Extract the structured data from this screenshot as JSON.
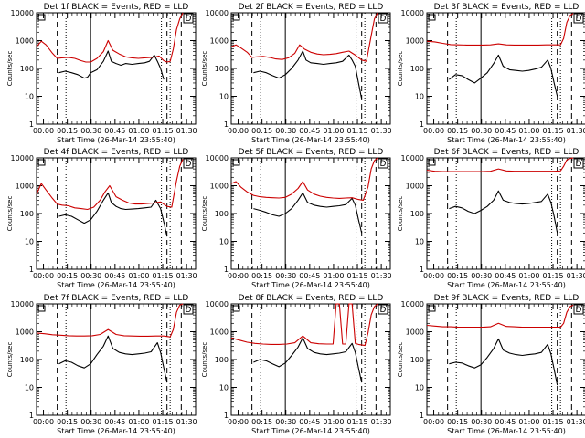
{
  "chart_data": {
    "type": "line",
    "ylabel": "Counts/sec",
    "xlabel": "Start Time (26-Mar-14 23:55:40)",
    "x_tick_labels": [
      "00:00",
      "00:15",
      "00:30",
      "00:45",
      "01:00",
      "01:15",
      "01:30"
    ],
    "x_tick_minutes": [
      4.33,
      19.33,
      34.33,
      49.33,
      64.33,
      79.33,
      94.33
    ],
    "y_scale": "log",
    "ylim": [
      1,
      10000
    ],
    "y_tick_labels": [
      "1",
      "10",
      "100",
      "1000",
      "10000"
    ],
    "xlim_minutes": [
      0,
      100
    ],
    "markers": {
      "dashed_minutes": [
        13,
        82,
        91
      ],
      "dotted_minutes": [
        18.5,
        78.5,
        84
      ],
      "solid_minutes": [
        34
      ]
    },
    "legend_box_label": "D",
    "panels": [
      {
        "title": "Det 1f BLACK = Events, RED = LLD",
        "series": [
          {
            "name": "Events",
            "color": "#000000",
            "x": [
              14,
              18,
              22,
              26,
              30,
              32,
              34,
              38,
              42,
              45,
              47,
              50,
              53,
              56,
              60,
              64,
              68,
              71,
              74,
              76,
              78,
              80
            ],
            "y": [
              70,
              80,
              70,
              60,
              45,
              48,
              70,
              90,
              180,
              420,
              180,
              150,
              130,
              150,
              140,
              150,
              160,
              180,
              300,
              180,
              100,
              40
            ]
          },
          {
            "name": "LLD",
            "color": "#cc0000",
            "x": [
              0,
              3,
              6,
              10,
              13,
              16,
              20,
              24,
              28,
              31,
              34,
              38,
              42,
              45,
              48,
              52,
              56,
              60,
              64,
              68,
              72,
              75,
              77,
              80,
              82,
              84,
              86,
              88,
              90,
              92
            ],
            "y": [
              600,
              950,
              700,
              350,
              230,
              240,
              250,
              230,
              190,
              170,
              170,
              230,
              400,
              1000,
              450,
              330,
              260,
              240,
              230,
              240,
              250,
              260,
              280,
              190,
              170,
              180,
              500,
              2500,
              6000,
              10000
            ]
          }
        ]
      },
      {
        "title": "Det 2f BLACK = Events, RED = LLD",
        "series": [
          {
            "name": "Events",
            "color": "#000000",
            "x": [
              14,
              18,
              22,
              26,
              30,
              34,
              38,
              42,
              45,
              47,
              50,
              54,
              58,
              62,
              66,
              70,
              74,
              76,
              78,
              80,
              82
            ],
            "y": [
              70,
              80,
              70,
              55,
              45,
              60,
              100,
              200,
              420,
              200,
              160,
              150,
              140,
              150,
              160,
              180,
              300,
              200,
              120,
              30,
              8
            ]
          },
          {
            "name": "LLD",
            "color": "#cc0000",
            "x": [
              0,
              3,
              6,
              10,
              13,
              16,
              20,
              24,
              28,
              32,
              36,
              40,
              43,
              46,
              50,
              54,
              58,
              62,
              66,
              70,
              74,
              78,
              82,
              85,
              88,
              90,
              92
            ],
            "y": [
              600,
              700,
              550,
              380,
              250,
              260,
              270,
              250,
              220,
              210,
              240,
              350,
              700,
              500,
              380,
              330,
              310,
              320,
              340,
              380,
              420,
              300,
              200,
              180,
              1500,
              6000,
              10000
            ]
          }
        ]
      },
      {
        "title": "Det 3f BLACK = Events, RED = LLD",
        "series": [
          {
            "name": "Events",
            "color": "#000000",
            "x": [
              14,
              18,
              22,
              26,
              30,
              34,
              38,
              42,
              45,
              48,
              52,
              56,
              60,
              64,
              68,
              72,
              76,
              78,
              80,
              82
            ],
            "y": [
              40,
              60,
              55,
              40,
              30,
              45,
              70,
              150,
              300,
              120,
              90,
              85,
              80,
              85,
              95,
              110,
              200,
              100,
              30,
              10
            ]
          },
          {
            "name": "LLD",
            "color": "#cc0000",
            "x": [
              0,
              5,
              10,
              15,
              20,
              25,
              30,
              35,
              40,
              45,
              50,
              55,
              60,
              65,
              70,
              75,
              80,
              84,
              86,
              88,
              90,
              92
            ],
            "y": [
              950,
              900,
              800,
              720,
              700,
              690,
              690,
              690,
              700,
              760,
              700,
              690,
              690,
              690,
              690,
              700,
              700,
              700,
              1200,
              4500,
              8000,
              9500
            ]
          }
        ]
      },
      {
        "title": "Det 4f BLACK = Events, RED = LLD",
        "series": [
          {
            "name": "Events",
            "color": "#000000",
            "x": [
              14,
              18,
              22,
              26,
              30,
              34,
              38,
              42,
              45,
              47,
              50,
              53,
              56,
              60,
              64,
              68,
              72,
              75,
              78,
              80,
              82
            ],
            "y": [
              80,
              90,
              80,
              60,
              45,
              60,
              120,
              300,
              550,
              250,
              180,
              150,
              140,
              145,
              150,
              160,
              170,
              300,
              150,
              50,
              15
            ]
          },
          {
            "name": "LLD",
            "color": "#cc0000",
            "x": [
              0,
              3,
              6,
              10,
              13,
              16,
              20,
              24,
              28,
              32,
              36,
              40,
              43,
              46,
              50,
              54,
              58,
              62,
              66,
              70,
              74,
              78,
              82,
              85,
              88,
              90,
              92
            ],
            "y": [
              500,
              1200,
              700,
              350,
              220,
              200,
              190,
              160,
              150,
              140,
              170,
              300,
              600,
              1000,
              400,
              300,
              240,
              220,
              220,
              230,
              240,
              260,
              180,
              170,
              1500,
              5000,
              9000
            ]
          }
        ]
      },
      {
        "title": "Det 5f BLACK = Events, RED = LLD",
        "series": [
          {
            "name": "Events",
            "color": "#000000",
            "x": [
              14,
              18,
              22,
              26,
              30,
              34,
              38,
              42,
              45,
              48,
              52,
              56,
              60,
              64,
              68,
              72,
              76,
              78,
              80,
              82
            ],
            "y": [
              150,
              130,
              110,
              90,
              80,
              100,
              150,
              300,
              550,
              250,
              200,
              180,
              170,
              180,
              190,
              210,
              350,
              200,
              60,
              20
            ]
          },
          {
            "name": "LLD",
            "color": "#cc0000",
            "x": [
              0,
              3,
              6,
              10,
              14,
              18,
              22,
              26,
              30,
              34,
              38,
              42,
              45,
              48,
              52,
              56,
              60,
              64,
              68,
              72,
              76,
              80,
              83,
              86,
              88,
              90,
              92
            ],
            "y": [
              1200,
              1400,
              900,
              600,
              450,
              400,
              380,
              370,
              360,
              380,
              500,
              800,
              1400,
              700,
              500,
              420,
              380,
              360,
              350,
              360,
              370,
              320,
              300,
              900,
              4000,
              8000,
              10000
            ]
          }
        ]
      },
      {
        "title": "Det 6f BLACK = Events, RED = LLD",
        "series": [
          {
            "name": "Events",
            "color": "#000000",
            "x": [
              14,
              18,
              22,
              26,
              30,
              34,
              38,
              42,
              45,
              48,
              52,
              56,
              60,
              64,
              68,
              72,
              76,
              78,
              80,
              82
            ],
            "y": [
              150,
              180,
              160,
              120,
              100,
              130,
              180,
              300,
              650,
              300,
              250,
              230,
              220,
              230,
              250,
              270,
              500,
              250,
              80,
              20
            ]
          },
          {
            "name": "LLD",
            "color": "#cc0000",
            "x": [
              0,
              5,
              10,
              15,
              20,
              25,
              30,
              35,
              40,
              45,
              50,
              55,
              60,
              65,
              70,
              75,
              80,
              84,
              86,
              88,
              90,
              92
            ],
            "y": [
              3600,
              3300,
              3200,
              3200,
              3200,
              3200,
              3200,
              3200,
              3300,
              4000,
              3400,
              3300,
              3300,
              3300,
              3300,
              3300,
              3300,
              3400,
              5000,
              8500,
              9500,
              10000
            ]
          }
        ]
      },
      {
        "title": "Det 7f BLACK = Events, RED = LLD",
        "series": [
          {
            "name": "Events",
            "color": "#000000",
            "x": [
              14,
              18,
              22,
              26,
              30,
              34,
              38,
              42,
              45,
              48,
              52,
              56,
              60,
              64,
              68,
              72,
              76,
              78,
              80,
              82
            ],
            "y": [
              70,
              90,
              80,
              60,
              50,
              70,
              150,
              300,
              700,
              250,
              180,
              160,
              150,
              160,
              170,
              190,
              400,
              180,
              50,
              15
            ]
          },
          {
            "name": "LLD",
            "color": "#cc0000",
            "x": [
              0,
              5,
              10,
              15,
              20,
              25,
              30,
              35,
              40,
              45,
              50,
              55,
              60,
              65,
              70,
              75,
              80,
              84,
              86,
              88,
              90,
              92
            ],
            "y": [
              900,
              850,
              780,
              750,
              720,
              700,
              700,
              720,
              800,
              1200,
              800,
              720,
              700,
              690,
              690,
              700,
              700,
              650,
              1200,
              5000,
              9000,
              10000
            ]
          }
        ]
      },
      {
        "title": "Det 8f BLACK = Events, RED = LLD",
        "series": [
          {
            "name": "Events",
            "color": "#000000",
            "x": [
              14,
              18,
              22,
              26,
              30,
              34,
              38,
              42,
              45,
              48,
              52,
              56,
              60,
              64,
              68,
              72,
              76,
              78,
              80,
              82
            ],
            "y": [
              80,
              100,
              90,
              70,
              55,
              75,
              140,
              280,
              600,
              250,
              180,
              160,
              150,
              160,
              170,
              190,
              380,
              180,
              50,
              15
            ]
          },
          {
            "name": "LLD",
            "color": "#cc0000",
            "x": [
              0,
              5,
              10,
              15,
              20,
              25,
              30,
              35,
              40,
              45,
              50,
              55,
              60,
              64,
              66,
              68,
              70,
              72,
              74,
              76,
              78,
              80,
              84,
              86,
              88,
              90,
              92
            ],
            "y": [
              600,
              500,
              420,
              380,
              360,
              350,
              350,
              360,
              400,
              700,
              400,
              370,
              360,
              360,
              10000,
              10000,
              360,
              360,
              10000,
              10000,
              380,
              350,
              320,
              900,
              4000,
              8000,
              10000
            ]
          }
        ]
      },
      {
        "title": "Det 9f BLACK = Events, RED = LLD",
        "series": [
          {
            "name": "Events",
            "color": "#000000",
            "x": [
              14,
              18,
              22,
              26,
              30,
              34,
              38,
              42,
              45,
              48,
              52,
              56,
              60,
              64,
              68,
              72,
              76,
              78,
              80,
              82
            ],
            "y": [
              70,
              80,
              75,
              60,
              50,
              65,
              120,
              250,
              550,
              220,
              170,
              150,
              140,
              150,
              160,
              180,
              350,
              160,
              45,
              12
            ]
          },
          {
            "name": "LLD",
            "color": "#cc0000",
            "x": [
              0,
              5,
              10,
              15,
              20,
              25,
              30,
              35,
              40,
              45,
              50,
              55,
              60,
              65,
              70,
              75,
              80,
              84,
              86,
              88,
              90,
              92
            ],
            "y": [
              1700,
              1600,
              1500,
              1500,
              1450,
              1450,
              1450,
              1450,
              1500,
              2000,
              1550,
              1500,
              1450,
              1450,
              1450,
              1450,
              1450,
              1450,
              2000,
              5000,
              8000,
              9000
            ]
          }
        ]
      }
    ]
  }
}
